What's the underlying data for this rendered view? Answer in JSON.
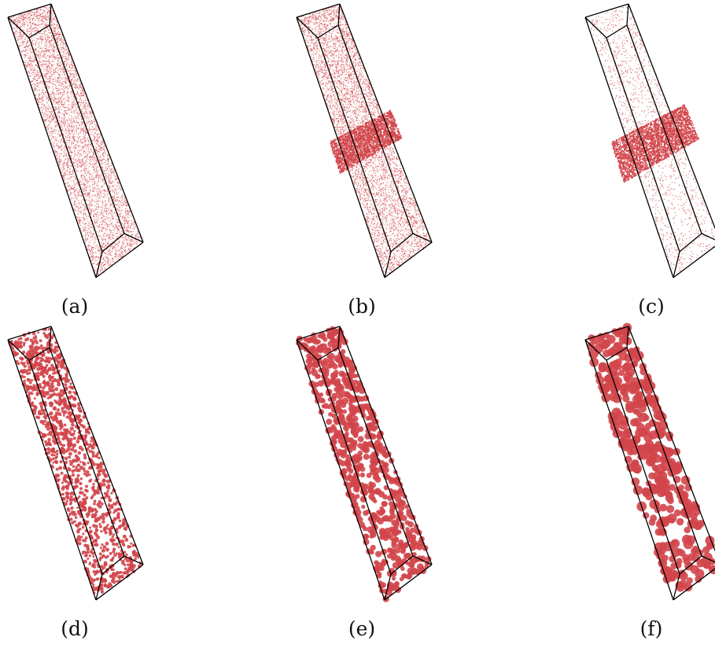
{
  "particle_color": "#d2454a",
  "frame_color": "#000000",
  "panels": [
    {
      "label": "(a)",
      "style": "uniform-fine-dots"
    },
    {
      "label": "(b)",
      "style": "fine-dots-with-dense-band"
    },
    {
      "label": "(c)",
      "style": "sparse-dots-with-dense-band"
    },
    {
      "label": "(d)",
      "style": "small-droplets"
    },
    {
      "label": "(e)",
      "style": "medium-droplets"
    },
    {
      "label": "(f)",
      "style": "large-droplets"
    }
  ]
}
